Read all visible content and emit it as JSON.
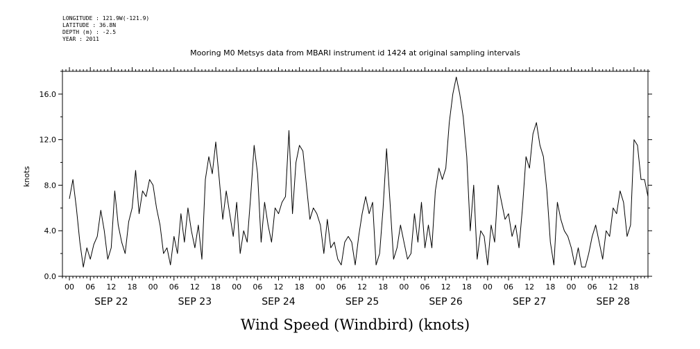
{
  "meta": {
    "longitude": "LONGITUDE : 121.9W(-121.9)",
    "latitude": "LATITUDE : 36.8N",
    "depth": "DEPTH (m) : -2.5",
    "year": "YEAR : 2011"
  },
  "chart_data": {
    "type": "line",
    "title": "Mooring M0 Metsys data from MBARI instrument id 1424 at original sampling intervals",
    "xlabel": "Wind Speed (Windbird) (knots)",
    "ylabel": "knots",
    "ylim": [
      0,
      18
    ],
    "yticks": [
      0,
      4,
      8,
      12,
      16
    ],
    "ytick_labels": [
      "0.0",
      "4.0",
      "8.0",
      "12.0",
      "16.0"
    ],
    "hour_tick_labels": [
      "00",
      "06",
      "12",
      "18"
    ],
    "day_labels": [
      "SEP 22",
      "SEP 23",
      "SEP 24",
      "SEP 25",
      "SEP 26",
      "SEP 27",
      "SEP 28"
    ],
    "xlim_hours": [
      -2,
      166
    ],
    "grid": false,
    "series": [
      {
        "x": [
          0,
          1,
          2,
          3,
          4,
          5,
          6,
          7,
          8,
          9,
          10,
          11,
          12,
          13,
          14,
          15,
          16,
          17,
          18,
          19,
          20,
          21,
          22,
          23,
          24,
          25,
          26,
          27,
          28,
          29,
          30,
          31,
          32,
          33,
          34,
          35,
          36,
          37,
          38,
          39,
          40,
          41,
          42,
          43,
          44,
          45,
          46,
          47,
          48,
          49,
          50,
          51,
          52,
          53,
          54,
          55,
          56,
          57,
          58,
          59,
          60,
          61,
          62,
          63,
          64,
          65,
          66,
          67,
          68,
          69,
          70,
          71,
          72,
          73,
          74,
          75,
          76,
          77,
          78,
          79,
          80,
          81,
          82,
          83,
          84,
          85,
          86,
          87,
          88,
          89,
          90,
          91,
          92,
          93,
          94,
          95,
          96,
          97,
          98,
          99,
          100,
          101,
          102,
          103,
          104,
          105,
          106,
          107,
          108,
          109,
          110,
          111,
          112,
          113,
          114,
          115,
          116,
          117,
          118,
          119,
          120,
          121,
          122,
          123,
          124,
          125,
          126,
          127,
          128,
          129,
          130,
          131,
          132,
          133,
          134,
          135,
          136,
          137,
          138,
          139,
          140,
          141,
          142,
          143,
          144,
          145,
          146,
          147,
          148,
          149,
          150,
          151,
          152,
          153,
          154,
          155,
          156,
          157,
          158,
          159,
          160,
          161,
          162,
          163,
          164,
          165,
          166
        ],
        "values": [
          6.8,
          8.5,
          6.0,
          3.0,
          0.8,
          2.5,
          1.5,
          2.8,
          3.5,
          5.8,
          4.0,
          1.5,
          2.5,
          7.5,
          4.5,
          3.0,
          2.0,
          4.8,
          6.0,
          9.3,
          5.5,
          7.5,
          7.0,
          8.5,
          8.0,
          6.0,
          4.5,
          2.0,
          2.5,
          1.0,
          3.5,
          2.0,
          5.5,
          3.0,
          6.0,
          4.0,
          2.5,
          4.5,
          1.5,
          8.5,
          10.5,
          9.0,
          11.8,
          8.5,
          5.0,
          7.5,
          5.5,
          3.5,
          6.5,
          2.0,
          4.0,
          3.0,
          7.0,
          11.5,
          9.0,
          3.0,
          6.5,
          4.5,
          3.0,
          6.0,
          5.5,
          6.5,
          7.0,
          12.8,
          5.5,
          10.0,
          11.5,
          11.0,
          8.0,
          5.0,
          6.0,
          5.5,
          4.5,
          2.0,
          5.0,
          2.5,
          3.0,
          1.5,
          1.0,
          3.0,
          3.5,
          3.0,
          1.0,
          3.5,
          5.5,
          7.0,
          5.5,
          6.5,
          1.0,
          2.0,
          6.0,
          11.2,
          6.5,
          1.5,
          2.5,
          4.5,
          3.0,
          1.5,
          2.0,
          5.5,
          3.0,
          6.5,
          2.5,
          4.5,
          2.5,
          7.5,
          9.5,
          8.5,
          9.5,
          13.5,
          16.0,
          17.5,
          16.0,
          14.0,
          10.5,
          4.0,
          8.0,
          1.5,
          4.0,
          3.5,
          1.0,
          4.5,
          3.0,
          8.0,
          6.5,
          5.0,
          5.5,
          3.5,
          4.5,
          2.5,
          6.0,
          10.5,
          9.5,
          12.5,
          13.5,
          11.5,
          10.5,
          7.5,
          3.0,
          1.0,
          6.5,
          5.0,
          4.0,
          3.5,
          2.5,
          1.0,
          2.5,
          0.8,
          0.8,
          2.0,
          3.5,
          4.5,
          3.0,
          1.5,
          4.0,
          3.5,
          6.0,
          5.5,
          7.5,
          6.5,
          3.5,
          4.5,
          12.0,
          11.5,
          8.5,
          8.5,
          7.0
        ]
      }
    ]
  }
}
